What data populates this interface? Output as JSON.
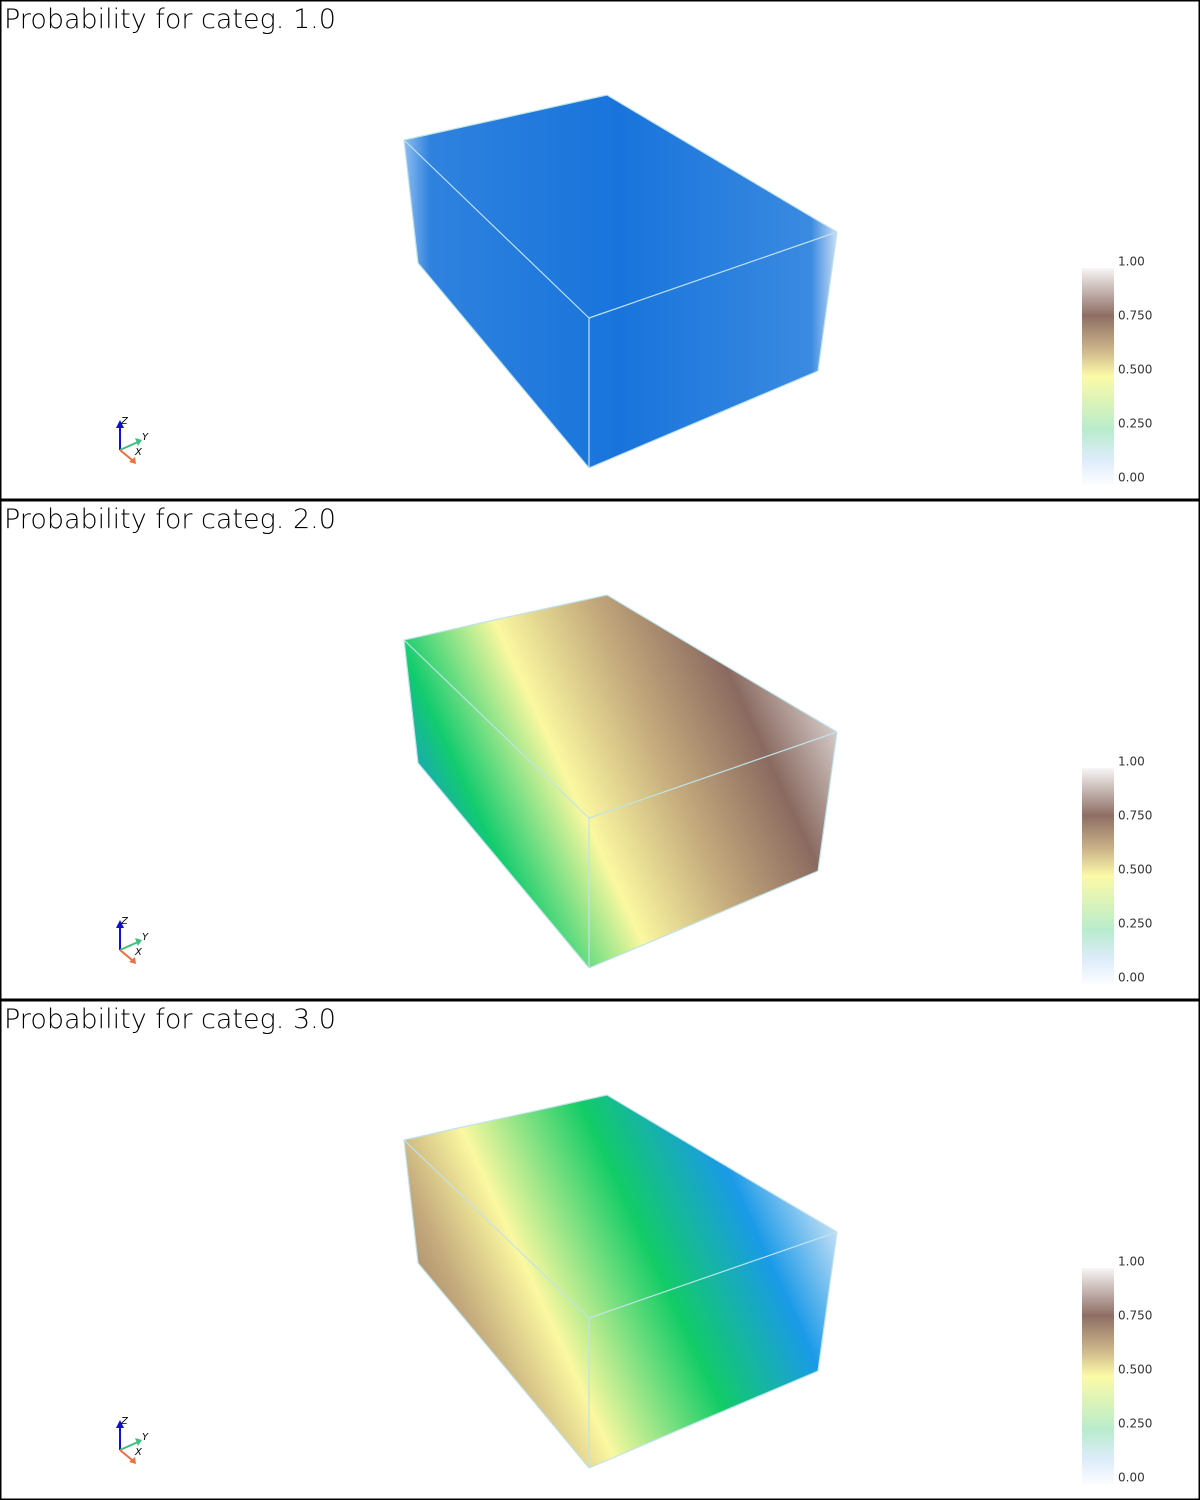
{
  "panels": [
    {
      "title": "Probability for categ. 1.0",
      "colorbar": {
        "ticks": [
          {
            "value": 1,
            "label": "1.00"
          },
          {
            "value": 0.75,
            "label": "0.750"
          },
          {
            "value": 0.5,
            "label": "0.500"
          },
          {
            "value": 0.25,
            "label": "0.250"
          },
          {
            "value": 0,
            "label": "0.00"
          }
        ]
      },
      "axes": {
        "z": "Z",
        "y": "Y",
        "x": "X"
      }
    },
    {
      "title": "Probability for categ. 2.0",
      "colorbar": {
        "ticks": [
          {
            "value": 1,
            "label": "1.00"
          },
          {
            "value": 0.75,
            "label": "0.750"
          },
          {
            "value": 0.5,
            "label": "0.500"
          },
          {
            "value": 0.25,
            "label": "0.250"
          },
          {
            "value": 0,
            "label": "0.00"
          }
        ]
      },
      "axes": {
        "z": "Z",
        "y": "Y",
        "x": "X"
      }
    },
    {
      "title": "Probability for categ. 3.0",
      "colorbar": {
        "ticks": [
          {
            "value": 1,
            "label": "1.00"
          },
          {
            "value": 0.75,
            "label": "0.750"
          },
          {
            "value": 0.5,
            "label": "0.500"
          },
          {
            "value": 0.25,
            "label": "0.250"
          },
          {
            "value": 0,
            "label": "0.00"
          }
        ]
      },
      "axes": {
        "z": "Z",
        "y": "Y",
        "x": "X"
      }
    }
  ]
}
